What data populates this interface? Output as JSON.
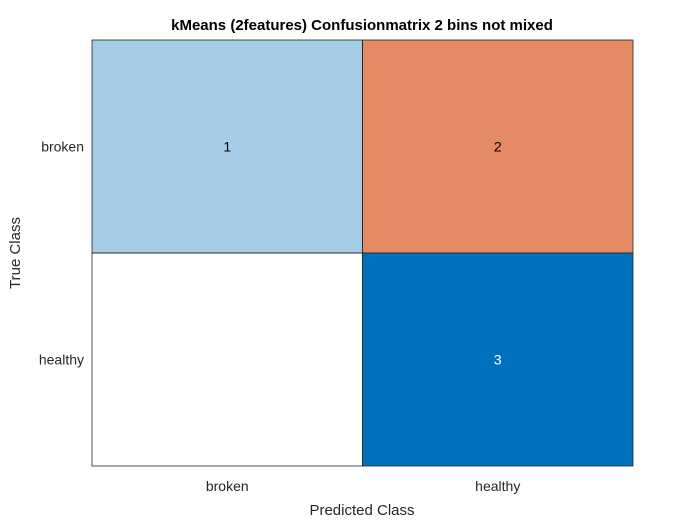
{
  "chart_data": {
    "type": "heatmap",
    "title": "kMeans (2features) Confusionmatrix 2 bins not mixed",
    "xlabel": "Predicted Class",
    "ylabel": "True Class",
    "x_categories": [
      "broken",
      "healthy"
    ],
    "y_categories": [
      "broken",
      "healthy"
    ],
    "matrix": [
      [
        1,
        2
      ],
      [
        0,
        3
      ]
    ],
    "cells": [
      {
        "true": "broken",
        "predicted": "broken",
        "value": 1,
        "label": "1",
        "color": "#a6cbe6",
        "text_color": "#000000"
      },
      {
        "true": "broken",
        "predicted": "healthy",
        "value": 2,
        "label": "2",
        "color": "#e48a64",
        "text_color": "#000000"
      },
      {
        "true": "healthy",
        "predicted": "broken",
        "value": 0,
        "label": "",
        "color": "#ffffff",
        "text_color": "#000000"
      },
      {
        "true": "healthy",
        "predicted": "healthy",
        "value": 3,
        "label": "3",
        "color": "#0072bd",
        "text_color": "#ffffff"
      }
    ],
    "grid": false,
    "legend": "none"
  }
}
